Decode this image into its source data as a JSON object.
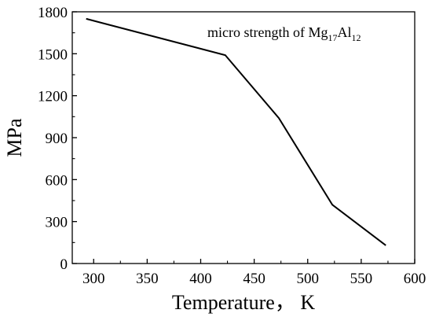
{
  "chart_data": {
    "type": "line",
    "title": "",
    "xlabel": "Temperature， K",
    "ylabel": "MPa",
    "xlim": [
      280,
      600
    ],
    "ylim": [
      0,
      1800
    ],
    "xticks": [
      300,
      350,
      400,
      450,
      500,
      550,
      600
    ],
    "yticks": [
      0,
      300,
      600,
      900,
      1200,
      1500,
      1800
    ],
    "grid": false,
    "legend_position": "top-right",
    "annotation": {
      "prefix": "micro strength  of Mg",
      "sub1": "17",
      "mid": "Al",
      "sub2": "12"
    },
    "series": [
      {
        "x": [
          293,
          423,
          473,
          523,
          573
        ],
        "y": [
          1750,
          1490,
          1040,
          420,
          130
        ],
        "color": "#000000"
      }
    ]
  }
}
